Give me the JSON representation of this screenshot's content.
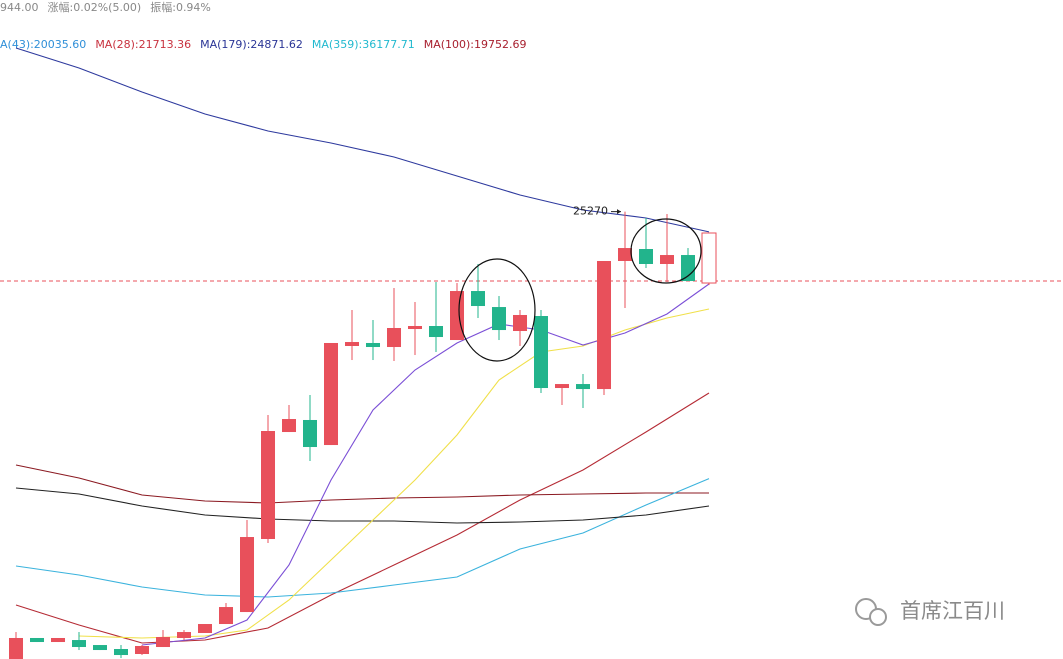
{
  "chart_data": {
    "type": "candlestick",
    "header": [
      {
        "text": "944.00",
        "color": "#888888"
      },
      {
        "text": "涨幅:0.02%(5.00)",
        "color": "#888888"
      },
      {
        "text": "振幅:0.94%",
        "color": "#888888"
      }
    ],
    "legend": [
      {
        "text": "A(43):20035.60",
        "color": "#2f8fd8"
      },
      {
        "text": "MA(28):21713.36",
        "color": "#c8323f"
      },
      {
        "text": "MA(179):24871.62",
        "color": "#2a3596"
      },
      {
        "text": "MA(359):36177.71",
        "color": "#21b9cf"
      },
      {
        "text": "MA(100):19752.69",
        "color": "#a8202f"
      }
    ],
    "xlim": [
      -0.762,
      49.857
    ],
    "ylim": [
      16497,
      29420
    ],
    "up_color": "#e8505b",
    "down_color": "#22b48c",
    "last_hollow": true,
    "candles": {
      "open": [
        16497,
        16909,
        16830,
        16869,
        16771,
        16693,
        16595,
        16732,
        16909,
        17007,
        17183,
        17418,
        18850,
        20948,
        21184,
        20693,
        22635,
        22694,
        22615,
        22968,
        23027,
        22752,
        23713,
        23399,
        22929,
        23223,
        21811,
        21889,
        21791,
        24302,
        24537,
        24243,
        24419,
        23870
      ],
      "high": [
        17026,
        16909,
        16909,
        17026,
        16771,
        16771,
        16771,
        17065,
        17065,
        17183,
        17595,
        19223,
        21282,
        21478,
        21674,
        22694,
        23341,
        23145,
        23772,
        23498,
        23890,
        23870,
        24243,
        23615,
        23341,
        23341,
        21889,
        22086,
        24302,
        25270,
        25145,
        25223,
        24556,
        24851
      ],
      "low": [
        16497,
        16830,
        16830,
        16673,
        16673,
        16516,
        16575,
        16732,
        16869,
        17007,
        17183,
        17418,
        18771,
        20948,
        20380,
        20693,
        22360,
        22360,
        22341,
        22458,
        22517,
        22752,
        23184,
        22752,
        22635,
        21713,
        21478,
        21419,
        21674,
        23380,
        24164,
        23890,
        23909,
        23830
      ],
      "close": [
        16909,
        16830,
        16909,
        16732,
        16673,
        16575,
        16752,
        16928,
        17026,
        17183,
        17516,
        18889,
        20968,
        21203,
        20654,
        22694,
        22713,
        22615,
        22988,
        23027,
        22811,
        23713,
        23419,
        22948,
        23243,
        21811,
        21889,
        21791,
        24302,
        24556,
        24243,
        24419,
        23909,
        24851
      ]
    },
    "lines": [
      {
        "color": "#2e3a9e",
        "x": [
          0,
          3,
          6,
          9,
          12,
          15,
          18,
          21,
          24,
          27,
          30,
          33
        ],
        "values": [
          28478,
          28086,
          27616,
          27184,
          26851,
          26616,
          26341,
          25968,
          25596,
          25302,
          25145,
          24871.62
        ]
      },
      {
        "color": "#b52b35",
        "x": [
          0,
          3,
          6,
          9,
          12,
          15,
          18,
          21,
          24,
          27,
          30,
          33
        ],
        "values": [
          17556,
          17163,
          16811,
          16869,
          17105,
          17752,
          18340,
          18928,
          19615,
          20203,
          20948,
          21713.36
        ]
      },
      {
        "color": "#8b1a22",
        "x": [
          0,
          3,
          6,
          9,
          12,
          15,
          18,
          21,
          24,
          27,
          30,
          33
        ],
        "values": [
          20301,
          20046,
          19713,
          19595,
          19556,
          19615,
          19654,
          19674,
          19713,
          19732,
          19752,
          19752.69
        ]
      },
      {
        "color": "#3bb3dd",
        "x": [
          0,
          3,
          6,
          9,
          12,
          15,
          18,
          21,
          24,
          27,
          30,
          33
        ],
        "values": [
          18321,
          18144,
          17909,
          17752,
          17713,
          17791,
          17948,
          18105,
          18654,
          18968,
          19517,
          20035.6
        ]
      },
      {
        "color": "#222222",
        "x": [
          0,
          3,
          6,
          9,
          12,
          15,
          18,
          21,
          24,
          27,
          30,
          33
        ],
        "values": [
          19850,
          19732,
          19497,
          19321,
          19242,
          19203,
          19203,
          19164,
          19183,
          19223,
          19321,
          19497
        ]
      },
      {
        "color": "#f0e04a",
        "x": [
          3,
          6,
          9,
          11,
          13,
          15,
          17,
          19,
          21,
          23,
          25,
          27,
          29,
          31,
          33
        ],
        "values": [
          16948,
          16909,
          16948,
          17065,
          17654,
          18438,
          19223,
          20007,
          20889,
          21968,
          22517,
          22635,
          22948,
          23184,
          23360
        ]
      },
      {
        "color": "#7b4fd6",
        "x": [
          6,
          9,
          11,
          13,
          15,
          17,
          19,
          21,
          23,
          25,
          27,
          29,
          31,
          33
        ],
        "values": [
          16771,
          16909,
          17262,
          18340,
          20007,
          21380,
          22164,
          22694,
          23066,
          22948,
          22654,
          22890,
          23262,
          23850
        ]
      }
    ],
    "price_line": 23909,
    "annotation": {
      "value": 25270,
      "index": 29
    },
    "watermark": "首席江百川"
  }
}
